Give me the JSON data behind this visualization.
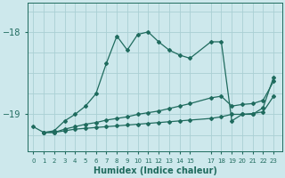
{
  "xlabel": "Humidex (Indice chaleur)",
  "bg_color": "#cde8ec",
  "line_color": "#1f6b5e",
  "grid_color": "#aacfd4",
  "xtick_positions": [
    0,
    1,
    2,
    3,
    4,
    5,
    6,
    7,
    8,
    9,
    10,
    11,
    12,
    13,
    14,
    15,
    17,
    18,
    19,
    20,
    21,
    22,
    23
  ],
  "xtick_labels": [
    "0",
    "1",
    "2",
    "3",
    "4",
    "5",
    "6",
    "7",
    "8",
    "9",
    "10",
    "11",
    "12",
    "13",
    "14",
    "15",
    "17",
    "18",
    "19",
    "20",
    "21",
    "22",
    "23"
  ],
  "ylim": [
    -19.45,
    -17.65
  ],
  "yticks": [
    -19,
    -18
  ],
  "line1_x": [
    0,
    1,
    2,
    3,
    4,
    5,
    6,
    7,
    8,
    9,
    10,
    11,
    12,
    13,
    14,
    15,
    17,
    18,
    19,
    20,
    21,
    22,
    23
  ],
  "line1_y": [
    -19.15,
    -19.22,
    -19.2,
    -19.08,
    -19.0,
    -18.9,
    -18.75,
    -18.38,
    -18.05,
    -18.22,
    -18.03,
    -18.0,
    -18.12,
    -18.22,
    -18.28,
    -18.32,
    -18.12,
    -18.12,
    -19.08,
    -19.0,
    -19.0,
    -18.92,
    -18.55
  ],
  "line2_x": [
    1,
    2,
    3,
    4,
    5,
    6,
    7,
    8,
    9,
    10,
    11,
    12,
    13,
    14,
    15,
    17,
    18,
    19,
    20,
    21,
    22,
    23
  ],
  "line2_y": [
    -19.22,
    -19.22,
    -19.18,
    -19.15,
    -19.12,
    -19.1,
    -19.07,
    -19.05,
    -19.03,
    -19.0,
    -18.98,
    -18.96,
    -18.93,
    -18.9,
    -18.87,
    -18.8,
    -18.78,
    -18.9,
    -18.88,
    -18.87,
    -18.83,
    -18.6
  ],
  "line3_x": [
    1,
    2,
    3,
    4,
    5,
    6,
    7,
    8,
    9,
    10,
    11,
    12,
    13,
    14,
    15,
    17,
    18,
    19,
    20,
    21,
    22,
    23
  ],
  "line3_y": [
    -19.22,
    -19.22,
    -19.2,
    -19.18,
    -19.17,
    -19.16,
    -19.15,
    -19.14,
    -19.13,
    -19.12,
    -19.11,
    -19.1,
    -19.09,
    -19.08,
    -19.07,
    -19.05,
    -19.03,
    -19.0,
    -19.0,
    -18.99,
    -18.97,
    -18.78
  ]
}
